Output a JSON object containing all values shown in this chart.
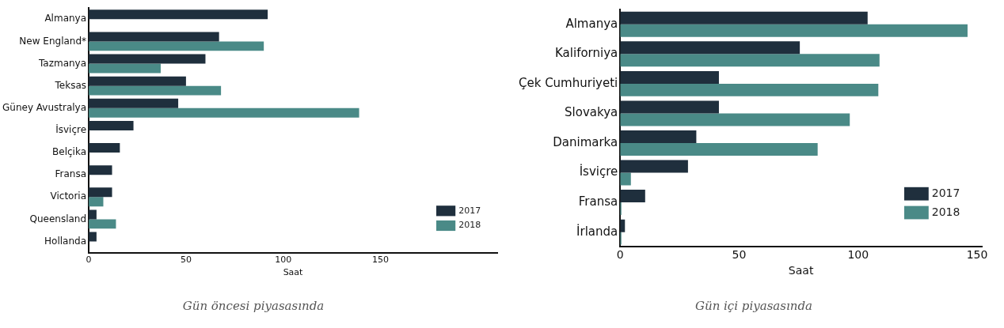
{
  "chart_data": [
    {
      "type": "bar",
      "orientation": "horizontal",
      "categories": [
        "Almanya",
        "New England*",
        "Tazmanya",
        "Teksas",
        "Güney Avustralya",
        "İsviçre",
        "Belçika",
        "Fransa",
        "Victoria",
        "Queensland",
        "Hollanda"
      ],
      "series": [
        {
          "name": "2017",
          "color": "#1f2f3d",
          "values": [
            92,
            67,
            60,
            50,
            46,
            23,
            16,
            12,
            12,
            4,
            4
          ]
        },
        {
          "name": "2018",
          "color": "#4a8a87",
          "values": [
            null,
            90,
            37,
            68,
            139,
            null,
            null,
            null,
            7.5,
            14,
            null
          ]
        }
      ],
      "xlabel": "Saat",
      "xlim": [
        0,
        210
      ],
      "xticks": [
        0,
        50,
        100,
        150
      ],
      "grid": false,
      "legend": "bottom right",
      "annotations": [
        "Gün öncesi piyasasında"
      ]
    },
    {
      "type": "bar",
      "orientation": "horizontal",
      "categories": [
        "Almanya",
        "Kaliforniya",
        "Çek Cumhuriyeti",
        "Slovakya",
        "Danimarka",
        "İsviçre",
        "Fransa",
        "İrlanda"
      ],
      "series": [
        {
          "name": "2017",
          "color": "#1f2f3d",
          "values": [
            104,
            75.5,
            41.5,
            41.5,
            32,
            28.5,
            10.5,
            2
          ]
        },
        {
          "name": "2018",
          "color": "#4a8a87",
          "values": [
            146,
            109,
            108.5,
            96.5,
            83,
            4.5,
            0.5,
            0.5
          ]
        }
      ],
      "xlabel": "Saat",
      "xlim": [
        0,
        152
      ],
      "xticks": [
        0,
        50,
        100,
        150
      ],
      "grid": false,
      "legend": "bottom right",
      "annotations": [
        "Gün içi piyasasında"
      ]
    }
  ]
}
